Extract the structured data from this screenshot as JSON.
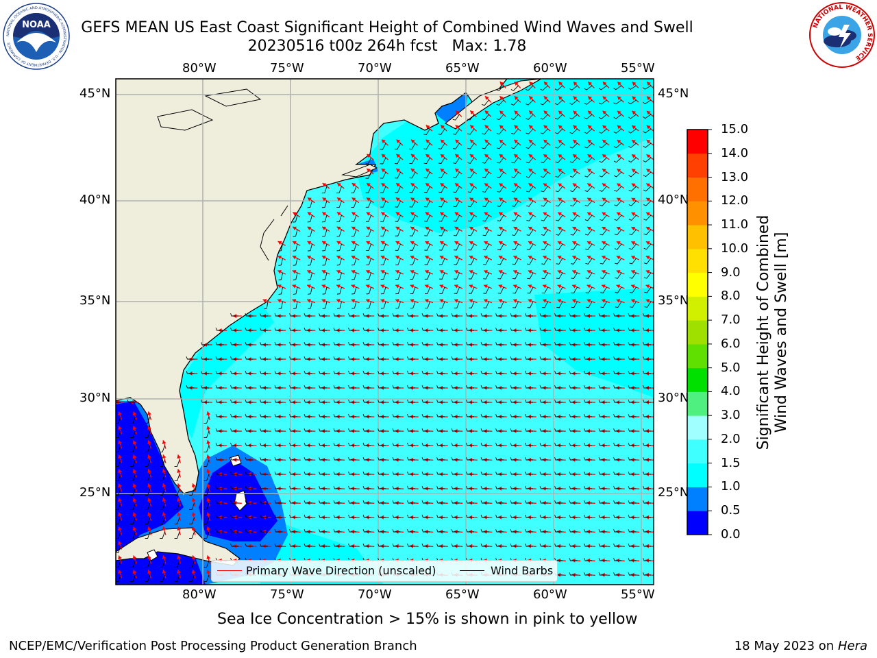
{
  "header": {
    "title_line1": "GEFS MEAN US East Coast Significant Height of Combined Wind Waves and Swell",
    "title_line2": "20230516 t00z 264h fcst   Max: 1.78"
  },
  "logos": {
    "left": {
      "text": "NOAA",
      "ring_text": "NATIONAL OCEANIC AND ATMOSPHERIC ADMINISTRATION · U.S. DEPARTMENT OF COMMERCE"
    },
    "right": {
      "ring_text": "NATIONAL WEATHER SERVICE"
    }
  },
  "map": {
    "lon_ticks": [
      "80°W",
      "75°W",
      "70°W",
      "65°W",
      "60°W",
      "55°W"
    ],
    "lat_ticks": [
      "45°N",
      "40°N",
      "35°N",
      "30°N",
      "25°N"
    ],
    "lon_range": [
      -85,
      -54.2
    ],
    "lat_range": [
      20.7,
      45.9
    ],
    "colors": {
      "land": "#efeedd",
      "coast": "#000000",
      "grid": "#b0b0b0",
      "wave_arrow": "#ff0000",
      "wind_barb": "#000000"
    }
  },
  "legend": {
    "primary_wave": "Primary Wave Direction (unscaled)",
    "wind_barbs": "Wind Barbs"
  },
  "colorbar": {
    "title_line1": "Significant Height of Combined",
    "title_line2": "Wind Waves and Swell [m]",
    "ticks": [
      "0.0",
      "0.5",
      "1.0",
      "1.5",
      "2.0",
      "3.0",
      "4.0",
      "5.0",
      "6.0",
      "7.0",
      "8.0",
      "9.0",
      "10.0",
      "11.0",
      "12.0",
      "13.0",
      "14.0",
      "15.0"
    ],
    "colors": [
      "#0000ff",
      "#0080ff",
      "#00ffff",
      "#40ffff",
      "#a0ffff",
      "#50f080",
      "#00e000",
      "#60e000",
      "#a0e000",
      "#d0f000",
      "#ffff00",
      "#ffe000",
      "#ffc000",
      "#ff9000",
      "#ff7000",
      "#ff4000",
      "#ff0000"
    ]
  },
  "subtitle": "Sea Ice Concentration > 15% is shown in pink to yellow",
  "footer": {
    "left": "NCEP/EMC/Verification Post Processing Product Generation Branch",
    "right_date": "18 May 2023 on",
    "right_host": "Hera"
  }
}
